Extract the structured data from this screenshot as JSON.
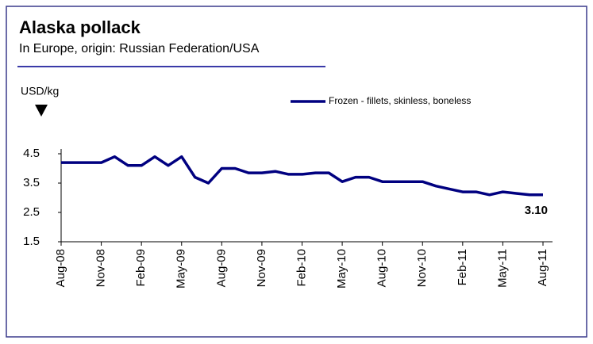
{
  "chart_data": {
    "type": "line",
    "title": "Alaska pollack",
    "subtitle": "In Europe, origin: Russian Federation/USA",
    "y_axis_label": "USD/kg",
    "categories": [
      "Aug-08",
      null,
      null,
      "Nov-08",
      null,
      null,
      "Feb-09",
      null,
      null,
      "May-09",
      null,
      null,
      "Aug-09",
      null,
      null,
      "Nov-09",
      null,
      null,
      "Feb-10",
      null,
      null,
      "May-10",
      null,
      null,
      "Aug-10",
      null,
      null,
      "Nov-10",
      null,
      null,
      "Feb-11",
      null,
      null,
      "May-11",
      null,
      null,
      "Aug-11"
    ],
    "series": [
      {
        "name": "Frozen - fillets, skinless, boneless",
        "color": "#000080",
        "values": [
          4.2,
          4.2,
          4.2,
          4.2,
          4.4,
          4.1,
          4.1,
          4.4,
          4.1,
          4.4,
          3.7,
          3.5,
          4.0,
          4.0,
          3.85,
          3.85,
          3.9,
          3.8,
          3.8,
          3.85,
          3.85,
          3.55,
          3.7,
          3.7,
          3.55,
          3.55,
          3.55,
          3.55,
          3.4,
          3.3,
          3.2,
          3.2,
          3.1,
          3.2,
          3.15,
          3.1,
          3.1
        ],
        "value_labels": [
          null,
          null,
          null,
          null,
          null,
          null,
          null,
          null,
          null,
          null,
          null,
          null,
          null,
          null,
          null,
          null,
          null,
          null,
          null,
          null,
          null,
          null,
          null,
          null,
          null,
          null,
          null,
          null,
          null,
          null,
          null,
          null,
          null,
          null,
          null,
          null,
          "3.10"
        ]
      }
    ],
    "ylim": [
      1.5,
      4.5
    ],
    "yticks": [
      1.5,
      2.5,
      3.5,
      4.5
    ],
    "legend": "top-right"
  }
}
